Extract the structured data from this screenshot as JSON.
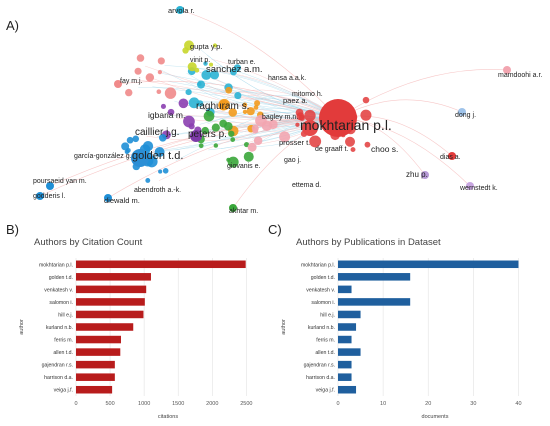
{
  "panels": {
    "a": "A)",
    "b": "B)",
    "c": "C)"
  },
  "network": {
    "labels": [
      "arvola r.",
      "gupta y.p.",
      "vinit p.",
      "turban e.",
      "sanchez a.m.",
      "hansa a.a.k.",
      "mitomo h.",
      "fay m.j.",
      "raghuram s.",
      "paez a.",
      "mamdoohi a.r.",
      "igbaria m.",
      "bagley m.n.",
      "mokhtarian p.l.",
      "caillier j.g.",
      "peters p.",
      "dong j.",
      "golden t.d.",
      "prosser t.",
      "de graaff t.",
      "choo s.",
      "garcía-gonzález g.",
      "gao j.",
      "giovanis e.",
      "dias a.",
      "zhu p.",
      "poursaeid yan m.",
      "abendroth a.-k.",
      "ettema d.",
      "wernstedt k.",
      "godderis l.",
      "diewald m.",
      "akhtar m."
    ]
  },
  "chart_data": [
    {
      "type": "bar",
      "orientation": "horizontal",
      "title": "Authors by Citation Count",
      "xlabel": "citations",
      "ylabel": "author",
      "categories": [
        "mokhtarian p.l.",
        "golden t.d.",
        "venkatesh v.",
        "salomon i.",
        "hill e.j.",
        "kurland n.b.",
        "ferris m.",
        "allen t.d.",
        "gajendran r.s.",
        "harrison d.a.",
        "veiga j.f."
      ],
      "values": [
        2490,
        1100,
        1030,
        1010,
        990,
        840,
        660,
        650,
        570,
        570,
        530
      ],
      "xticks": [
        "0",
        "500",
        "1000",
        "1500",
        "2000",
        "2500"
      ],
      "xlim": [
        0,
        2700
      ],
      "color": "#b81c1c",
      "grid": true
    },
    {
      "type": "bar",
      "orientation": "horizontal",
      "title": "Authors by Publications in Dataset",
      "xlabel": "documents",
      "ylabel": "author",
      "categories": [
        "mokhtarian p.l.",
        "golden t.d.",
        "venkatesh v.",
        "salomon i.",
        "hill e.j.",
        "kurland n.b.",
        "ferris m.",
        "allen t.d.",
        "gajendran r.s.",
        "harrison d.a.",
        "veiga j.f."
      ],
      "values": [
        40,
        16,
        3,
        16,
        5,
        4,
        3,
        5,
        3,
        3,
        4
      ],
      "xticks": [
        "0",
        "10",
        "20",
        "30",
        "40"
      ],
      "xlim": [
        0,
        43
      ],
      "color": "#1f5f9e",
      "grid": true
    }
  ]
}
